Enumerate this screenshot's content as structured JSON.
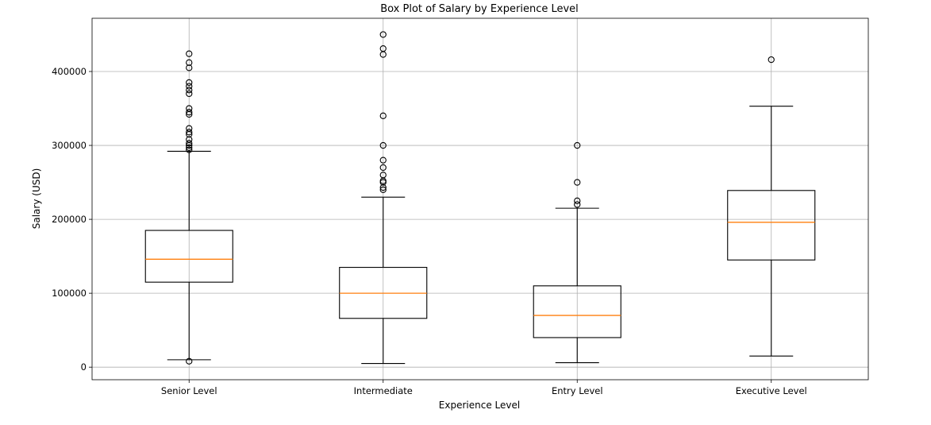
{
  "chart_data": {
    "type": "box",
    "title": "Box Plot of Salary by Experience Level",
    "xlabel": "Experience Level",
    "ylabel": "Salary (USD)",
    "ylim": [
      -17000,
      472000
    ],
    "yticks": [
      0,
      100000,
      200000,
      300000,
      400000
    ],
    "grid": true,
    "median_color": "#ff7f0e",
    "box_color": "#000000",
    "grid_color": "#b0b0b0",
    "categories": [
      "Senior Level",
      "Intermediate",
      "Entry Level",
      "Executive Level"
    ],
    "boxes": [
      {
        "category": "Senior Level",
        "whisker_low": 10000,
        "q1": 115000,
        "median": 146000,
        "q3": 185000,
        "whisker_high": 292000,
        "fliers": [
          8000,
          294000,
          297000,
          300000,
          303000,
          308000,
          315000,
          318000,
          323000,
          342000,
          345000,
          350000,
          370000,
          375000,
          380000,
          385000,
          405000,
          412000,
          424000
        ]
      },
      {
        "category": "Intermediate",
        "whisker_low": 5000,
        "q1": 66000,
        "median": 100000,
        "q3": 135000,
        "whisker_high": 230000,
        "fliers": [
          240000,
          243000,
          250000,
          252000,
          260000,
          270000,
          280000,
          300000,
          340000,
          423000,
          431000,
          450000
        ]
      },
      {
        "category": "Entry Level",
        "whisker_low": 6000,
        "q1": 40000,
        "median": 70000,
        "q3": 110000,
        "whisker_high": 215000,
        "fliers": [
          220000,
          225000,
          250000,
          300000
        ]
      },
      {
        "category": "Executive Level",
        "whisker_low": 15000,
        "q1": 145000,
        "median": 196000,
        "q3": 239000,
        "whisker_high": 353000,
        "fliers": [
          416000
        ]
      }
    ]
  }
}
